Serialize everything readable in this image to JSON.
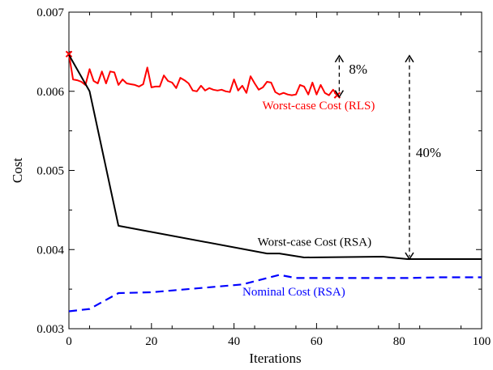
{
  "chart_data": {
    "type": "line",
    "xlabel": "Iterations",
    "ylabel": "Cost",
    "xlim": [
      0,
      100
    ],
    "ylim": [
      0.003,
      0.007
    ],
    "x_ticks": [
      0,
      20,
      40,
      60,
      80,
      100
    ],
    "x_tick_labels": [
      "0",
      "20",
      "40",
      "60",
      "80",
      "100"
    ],
    "y_ticks": [
      0.003,
      0.004,
      0.005,
      0.006,
      0.007
    ],
    "y_tick_labels": [
      "0.003",
      "0.004",
      "0.005",
      "0.006",
      "0.007"
    ],
    "grid": false,
    "series": [
      {
        "name": "Worst-case Cost (RLS)",
        "color": "#ff0000",
        "dash": "solid",
        "marker_endpoints": "x",
        "x": [
          0,
          1,
          2,
          3,
          4,
          5,
          6,
          7,
          8,
          9,
          10,
          11,
          12,
          13,
          14,
          15,
          16,
          17,
          18,
          19,
          20,
          21,
          22,
          23,
          24,
          25,
          26,
          27,
          28,
          29,
          30,
          31,
          32,
          33,
          34,
          35,
          36,
          37,
          38,
          39,
          40,
          41,
          42,
          43,
          44,
          45,
          46,
          47,
          48,
          49,
          50,
          51,
          52,
          53,
          54,
          55,
          56,
          57,
          58,
          59,
          60,
          61,
          62,
          63,
          64,
          65
        ],
        "y": [
          0.00647,
          0.00615,
          0.00614,
          0.00612,
          0.00608,
          0.00628,
          0.00613,
          0.0061,
          0.00625,
          0.0061,
          0.00625,
          0.00624,
          0.00608,
          0.00615,
          0.0061,
          0.00609,
          0.00608,
          0.00606,
          0.00609,
          0.0063,
          0.00605,
          0.00606,
          0.00606,
          0.0062,
          0.00613,
          0.00611,
          0.00604,
          0.00617,
          0.00614,
          0.0061,
          0.00601,
          0.006,
          0.00607,
          0.00601,
          0.00604,
          0.00602,
          0.00601,
          0.00602,
          0.006,
          0.00599,
          0.00615,
          0.00601,
          0.00607,
          0.00598,
          0.00619,
          0.0061,
          0.00602,
          0.00605,
          0.00612,
          0.00611,
          0.00599,
          0.00596,
          0.00598,
          0.00596,
          0.00595,
          0.00596,
          0.00608,
          0.00606,
          0.00596,
          0.00611,
          0.00596,
          0.00608,
          0.00598,
          0.00595,
          0.00602,
          0.00595
        ]
      },
      {
        "name": "Worst-case Cost (RSA)",
        "color": "#000000",
        "dash": "solid",
        "x": [
          0,
          5,
          12,
          48,
          51,
          57,
          76,
          82,
          100
        ],
        "y": [
          0.00646,
          0.006,
          0.0043,
          0.00395,
          0.00395,
          0.0039,
          0.00391,
          0.00388,
          0.00388
        ]
      },
      {
        "name": "Nominal Cost (RSA)",
        "color": "#0000ff",
        "dash": "dashed",
        "x": [
          0,
          5,
          12,
          20,
          42,
          51,
          55,
          70,
          82,
          90,
          100
        ],
        "y": [
          0.00322,
          0.00325,
          0.00345,
          0.00346,
          0.00356,
          0.00368,
          0.00364,
          0.00364,
          0.00364,
          0.00365,
          0.00365
        ]
      }
    ],
    "annotations": [
      {
        "text": "8%",
        "x": 65.5,
        "y_from": 0.00593,
        "y_to": 0.00645
      },
      {
        "text": "40%",
        "x": 82.5,
        "y_from": 0.00388,
        "y_to": 0.00645
      }
    ]
  }
}
